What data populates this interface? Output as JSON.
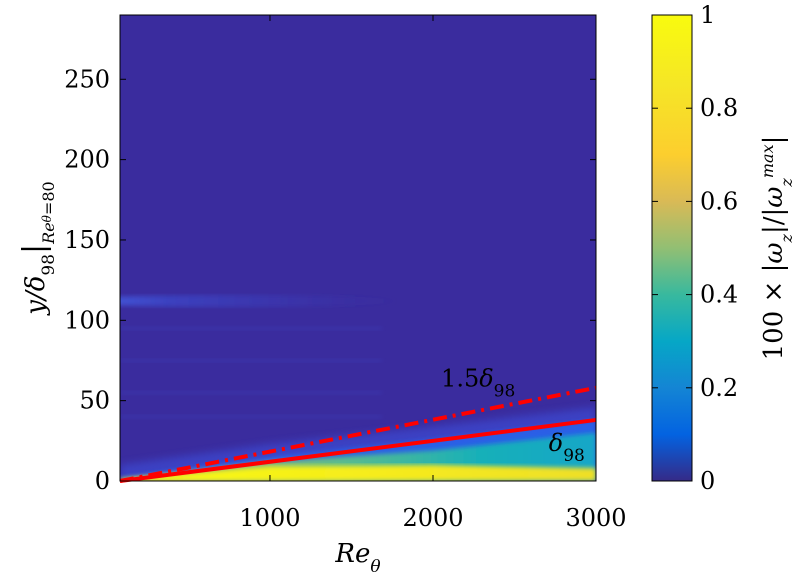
{
  "chart_data": {
    "type": "heatmap",
    "xlabel": "Re_θ",
    "ylabel": "y/δ98|Reθ=80",
    "xlim": [
      80,
      3000
    ],
    "ylim": [
      0,
      290
    ],
    "xticks": [
      1000,
      2000,
      3000
    ],
    "yticks": [
      0,
      50,
      100,
      150,
      200,
      250
    ],
    "grid": false,
    "colorbar": {
      "label": "100 × |ωz|/|ωz^max|",
      "range": [
        0,
        1
      ],
      "ticks": [
        0,
        0.2,
        0.4,
        0.6,
        0.8,
        1
      ],
      "colormap": "parula"
    },
    "field": {
      "description_points": [
        {
          "x": 80,
          "thickness_95": 1
        },
        {
          "x": 1000,
          "thickness_95": 9
        },
        {
          "x": 2000,
          "thickness_95": 10
        },
        {
          "x": 3000,
          "thickness_95": 8
        }
      ],
      "edge_band_top": [
        {
          "x": 80,
          "y": 2
        },
        {
          "x": 1000,
          "y": 15
        },
        {
          "x": 2000,
          "y": 26
        },
        {
          "x": 3000,
          "y": 38
        }
      ],
      "stripe": {
        "y": 112,
        "x_start": 80,
        "x_end": 2100
      }
    },
    "series": [
      {
        "name": "δ98",
        "style": "solid",
        "color": "#ff0000",
        "x": [
          80,
          3000
        ],
        "y": [
          0,
          38
        ]
      },
      {
        "name": "1.5δ98",
        "style": "dashdot",
        "color": "#ff0000",
        "x": [
          80,
          3000
        ],
        "y": [
          0,
          58
        ]
      }
    ],
    "annotations": [
      {
        "text": "1.5δ98",
        "x": 2400,
        "y": 60
      },
      {
        "text": "δ98",
        "x": 2870,
        "y": 20
      }
    ]
  }
}
